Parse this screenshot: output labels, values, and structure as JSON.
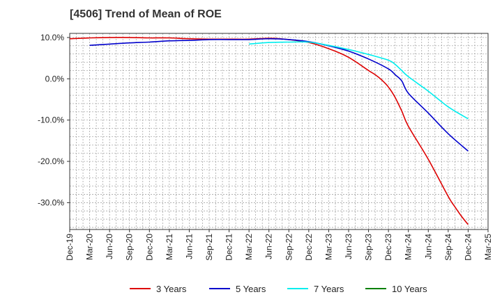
{
  "chart_data": {
    "type": "line",
    "title": "[4506]  Trend of Mean of ROE",
    "xlabel": "",
    "ylabel": "",
    "ylim": [
      -36.5,
      11.0
    ],
    "yticks": [
      10.0,
      0.0,
      -10.0,
      -20.0,
      -30.0
    ],
    "ytick_labels": [
      "10.0%",
      "0.0%",
      "-10.0%",
      "-20.0%",
      "-30.0%"
    ],
    "x_tick_labels": [
      "Dec-19",
      "Mar-20",
      "Jun-20",
      "Sep-20",
      "Dec-20",
      "Mar-21",
      "Jun-21",
      "Sep-21",
      "Dec-21",
      "Mar-22",
      "Jun-22",
      "Sep-22",
      "Dec-22",
      "Mar-23",
      "Jun-23",
      "Sep-23",
      "Dec-23",
      "Mar-24",
      "Jun-24",
      "Sep-24",
      "Dec-24",
      "Mar-25"
    ],
    "grid": true,
    "legend_position": "bottom",
    "series": [
      {
        "name": "3 Years",
        "color": "#dd0000",
        "points": [
          [
            0,
            9.7
          ],
          [
            1,
            9.9
          ],
          [
            2,
            10.0
          ],
          [
            3,
            10.0
          ],
          [
            4,
            9.9
          ],
          [
            5,
            9.9
          ],
          [
            6,
            9.7
          ],
          [
            7,
            9.6
          ],
          [
            8,
            9.6
          ],
          [
            9,
            9.6
          ],
          [
            10,
            9.8
          ],
          [
            11,
            9.6
          ],
          [
            12,
            9.1
          ],
          [
            13,
            7.8
          ],
          [
            14,
            6.0
          ],
          [
            15,
            3.5
          ],
          [
            16,
            1.0
          ],
          [
            17,
            -1.5
          ],
          [
            18,
            -5.0
          ],
          [
            19,
            -12.0
          ],
          [
            20,
            -18.0
          ],
          [
            21,
            -24.5
          ],
          [
            22,
            -30.5
          ],
          [
            23,
            -35.3
          ]
        ],
        "x_dates": [
          "Dec-19",
          "Feb-20",
          "Apr-20",
          "Jun-20",
          "Aug-20",
          "Oct-20",
          "Dec-20",
          "Feb-21",
          "Apr-21",
          "Jun-21",
          "Aug-21",
          "Oct-21",
          "Dec-21",
          "Feb-22",
          "Apr-22",
          "Jun-22",
          "Aug-22",
          "Oct-22",
          "Dec-22",
          "Feb-23",
          "Apr-23",
          "Jun-23",
          "Aug-23",
          "Dec-24"
        ]
      }
    ],
    "series_points": {
      "3 Years": [
        [
          "Dec-19",
          9.7
        ],
        [
          "Mar-20",
          9.9
        ],
        [
          "Jun-20",
          10.0
        ],
        [
          "Sep-20",
          10.0
        ],
        [
          "Dec-20",
          9.9
        ],
        [
          "Mar-21",
          9.9
        ],
        [
          "Jun-21",
          9.7
        ],
        [
          "Sep-21",
          9.6
        ],
        [
          "Dec-21",
          9.6
        ],
        [
          "Mar-22",
          9.6
        ],
        [
          "Jun-22",
          9.8
        ],
        [
          "Sep-22",
          9.5
        ],
        [
          "Dec-22",
          8.8
        ],
        [
          "Mar-23",
          7.3
        ],
        [
          "Jun-23",
          5.2
        ],
        [
          "Sep-23",
          2.0
        ],
        [
          "Oct-23",
          1.0
        ],
        [
          "Nov-23",
          -0.3
        ],
        [
          "Dec-23",
          -2.0
        ],
        [
          "Jan-24",
          -4.5
        ],
        [
          "Feb-24",
          -7.8
        ],
        [
          "Mar-24",
          -11.5
        ],
        [
          "Jun-24",
          -19.5
        ],
        [
          "Sep-24",
          -28.5
        ],
        [
          "Oct-24",
          -31.0
        ],
        [
          "Nov-24",
          -33.3
        ],
        [
          "Dec-24",
          -35.3
        ]
      ],
      "5 Years": [
        [
          "Mar-20",
          8.1
        ],
        [
          "Jun-20",
          8.4
        ],
        [
          "Sep-20",
          8.7
        ],
        [
          "Dec-20",
          8.9
        ],
        [
          "Mar-21",
          9.2
        ],
        [
          "Jun-21",
          9.3
        ],
        [
          "Sep-21",
          9.5
        ],
        [
          "Dec-21",
          9.5
        ],
        [
          "Mar-22",
          9.5
        ],
        [
          "Jun-22",
          9.7
        ],
        [
          "Sep-22",
          9.5
        ],
        [
          "Dec-22",
          9.0
        ],
        [
          "Mar-23",
          8.0
        ],
        [
          "Jun-23",
          6.7
        ],
        [
          "Sep-23",
          4.8
        ],
        [
          "Dec-23",
          2.4
        ],
        [
          "Jan-24",
          1.0
        ],
        [
          "Feb-24",
          -0.5
        ],
        [
          "Mar-24",
          -3.5
        ],
        [
          "Jun-24",
          -8.3
        ],
        [
          "Sep-24",
          -13.3
        ],
        [
          "Dec-24",
          -17.5
        ]
      ],
      "7 Years": [
        [
          "Mar-22",
          8.4
        ],
        [
          "Jun-22",
          8.8
        ],
        [
          "Sep-22",
          8.9
        ],
        [
          "Dec-22",
          8.9
        ],
        [
          "Mar-23",
          8.1
        ],
        [
          "Jun-23",
          7.1
        ],
        [
          "Sep-23",
          5.9
        ],
        [
          "Dec-23",
          4.5
        ],
        [
          "Jan-24",
          3.5
        ],
        [
          "Feb-24",
          2.0
        ],
        [
          "Mar-24",
          0.5
        ],
        [
          "Jun-24",
          -3.0
        ],
        [
          "Sep-24",
          -6.8
        ],
        [
          "Dec-24",
          -9.7
        ]
      ],
      "10 Years": []
    },
    "legend": [
      {
        "name": "3 Years",
        "color": "#dd0000"
      },
      {
        "name": "5 Years",
        "color": "#0000cc"
      },
      {
        "name": "7 Years",
        "color": "#00eeee"
      },
      {
        "name": "10 Years",
        "color": "#008000"
      }
    ]
  }
}
